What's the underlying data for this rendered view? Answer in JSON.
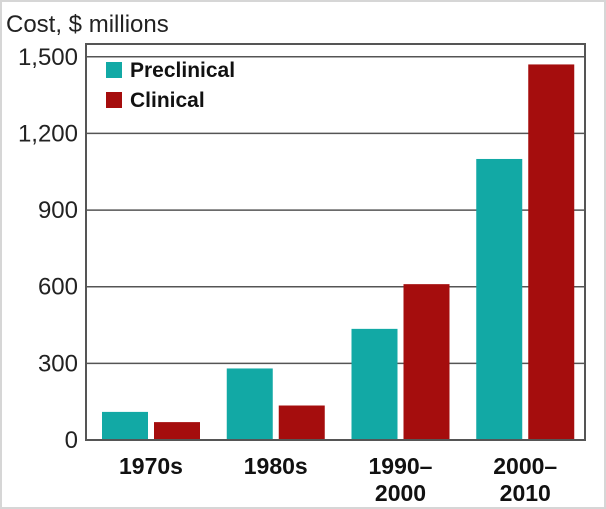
{
  "chart_data": {
    "type": "bar",
    "title": "",
    "ylabel": "Cost, $ millions",
    "xlabel": "",
    "ylim": [
      0,
      1500
    ],
    "yticks": [
      0,
      300,
      600,
      900,
      1200,
      1500
    ],
    "ytick_labels": [
      "0",
      "300",
      "600",
      "900",
      "1,200",
      "1,500"
    ],
    "grid": true,
    "legend_position": "top-left",
    "categories": [
      [
        "1970s"
      ],
      [
        "1980s"
      ],
      [
        "1990–",
        "2000"
      ],
      [
        "2000–",
        "2010"
      ]
    ],
    "series": [
      {
        "name": "Preclinical",
        "color": "#12a9a5",
        "values": [
          110,
          280,
          435,
          1100
        ]
      },
      {
        "name": "Clinical",
        "color": "#a50d0d",
        "values": [
          70,
          135,
          610,
          1470
        ]
      }
    ],
    "colors": {
      "axis": "#555555",
      "grid": "#555555"
    }
  }
}
